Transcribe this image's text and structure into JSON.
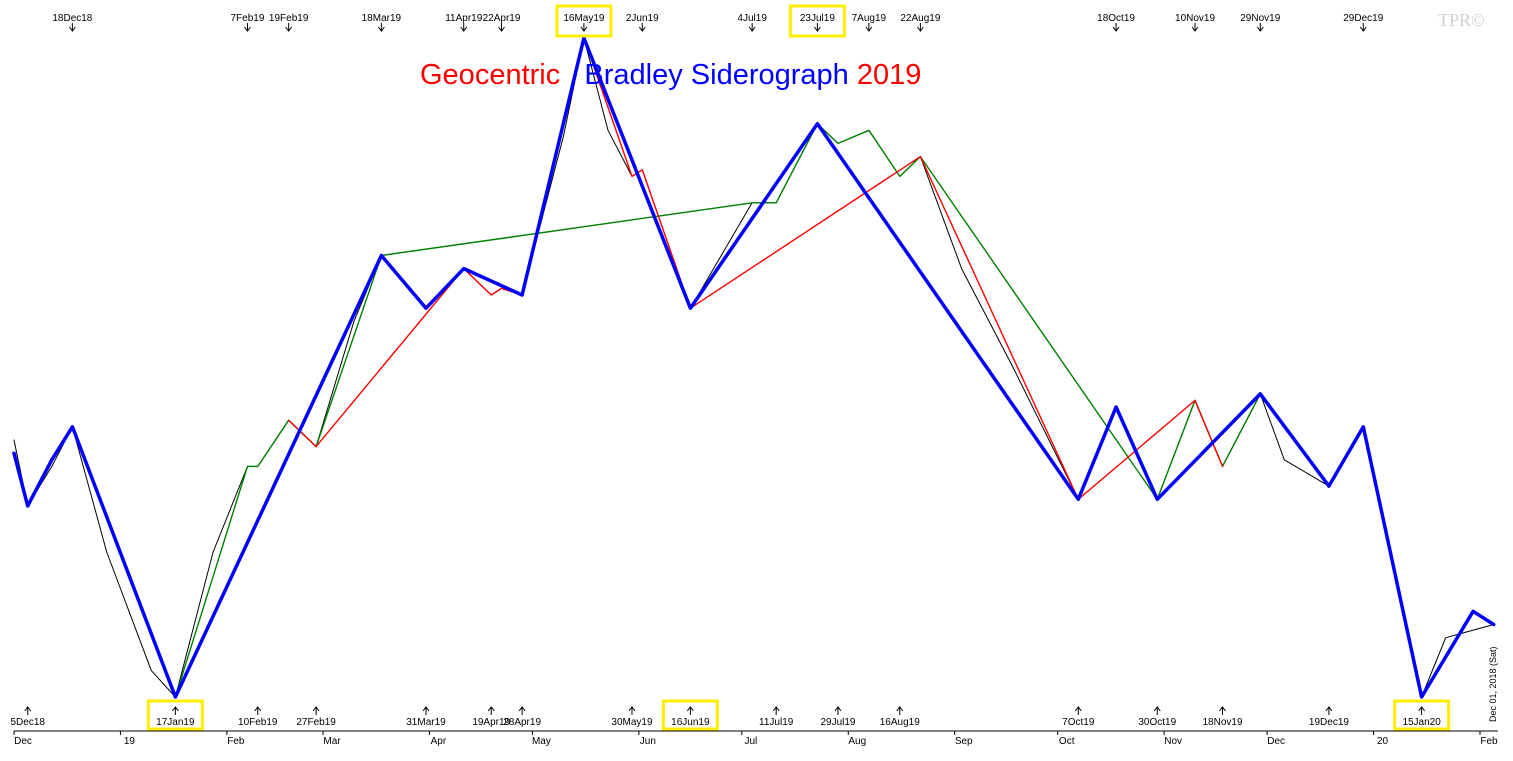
{
  "title": {
    "parts": [
      {
        "text": "Geocentric",
        "color": "#ff0000"
      },
      {
        "text": "Bradley Siderograph",
        "color": "#0000ff"
      },
      {
        "text": "2019",
        "color": "#ff0000"
      }
    ]
  },
  "logo": "TPR©",
  "side_date": "Dec 01, 2018 (Sat)",
  "chart_data": {
    "type": "line",
    "x_start": "2018-12-01",
    "x_end": "2020-02-01",
    "ylim": [
      0,
      100
    ],
    "months": [
      {
        "label": "Dec",
        "date": "2018-12-01"
      },
      {
        "label": "19",
        "date": "2019-01-01"
      },
      {
        "label": "Feb",
        "date": "2019-02-01"
      },
      {
        "label": "Mar",
        "date": "2019-03-01"
      },
      {
        "label": "Apr",
        "date": "2019-04-01"
      },
      {
        "label": "May",
        "date": "2019-05-01"
      },
      {
        "label": "Jun",
        "date": "2019-06-01"
      },
      {
        "label": "Jul",
        "date": "2019-07-01"
      },
      {
        "label": "Aug",
        "date": "2019-08-01"
      },
      {
        "label": "Sep",
        "date": "2019-09-01"
      },
      {
        "label": "Oct",
        "date": "2019-10-01"
      },
      {
        "label": "Nov",
        "date": "2019-11-01"
      },
      {
        "label": "Dec",
        "date": "2019-12-01"
      },
      {
        "label": "20",
        "date": "2020-01-01"
      },
      {
        "label": "Feb",
        "date": "2020-02-01"
      }
    ],
    "top_labels": [
      {
        "label": "18Dec18",
        "date": "2018-12-18",
        "highlight": false
      },
      {
        "label": "7Feb19",
        "date": "2019-02-07",
        "highlight": false
      },
      {
        "label": "19Feb19",
        "date": "2019-02-19",
        "highlight": false
      },
      {
        "label": "18Mar19",
        "date": "2019-03-18",
        "highlight": false
      },
      {
        "label": "11Apr19",
        "date": "2019-04-11",
        "highlight": false
      },
      {
        "label": "22Apr19",
        "date": "2019-04-22",
        "highlight": false
      },
      {
        "label": "16May19",
        "date": "2019-05-16",
        "highlight": true
      },
      {
        "label": "2Jun19",
        "date": "2019-06-02",
        "highlight": false
      },
      {
        "label": "4Jul19",
        "date": "2019-07-04",
        "highlight": false
      },
      {
        "label": "23Jul19",
        "date": "2019-07-23",
        "highlight": true
      },
      {
        "label": "7Aug19",
        "date": "2019-08-07",
        "highlight": false
      },
      {
        "label": "22Aug19",
        "date": "2019-08-22",
        "highlight": false
      },
      {
        "label": "18Oct19",
        "date": "2019-10-18",
        "highlight": false
      },
      {
        "label": "10Nov19",
        "date": "2019-11-10",
        "highlight": false
      },
      {
        "label": "29Nov19",
        "date": "2019-11-29",
        "highlight": false
      },
      {
        "label": "29Dec19",
        "date": "2019-12-29",
        "highlight": false
      }
    ],
    "bottom_labels": [
      {
        "label": "5Dec18",
        "date": "2018-12-05",
        "highlight": false
      },
      {
        "label": "17Jan19",
        "date": "2019-01-17",
        "highlight": true
      },
      {
        "label": "10Feb19",
        "date": "2019-02-10",
        "highlight": false
      },
      {
        "label": "27Feb19",
        "date": "2019-02-27",
        "highlight": false
      },
      {
        "label": "31Mar19",
        "date": "2019-03-31",
        "highlight": false
      },
      {
        "label": "19Apr19",
        "date": "2019-04-19",
        "highlight": false
      },
      {
        "label": "28Apr19",
        "date": "2019-04-28",
        "highlight": false
      },
      {
        "label": "30May19",
        "date": "2019-05-30",
        "highlight": false
      },
      {
        "label": "16Jun19",
        "date": "2019-06-16",
        "highlight": true
      },
      {
        "label": "11Jul19",
        "date": "2019-07-11",
        "highlight": false
      },
      {
        "label": "29Jul19",
        "date": "2019-07-29",
        "highlight": false
      },
      {
        "label": "16Aug19",
        "date": "2019-08-16",
        "highlight": false
      },
      {
        "label": "7Oct19",
        "date": "2019-10-07",
        "highlight": false
      },
      {
        "label": "30Oct19",
        "date": "2019-10-30",
        "highlight": false
      },
      {
        "label": "18Nov19",
        "date": "2019-11-18",
        "highlight": false
      },
      {
        "label": "19Dec19",
        "date": "2019-12-19",
        "highlight": false
      },
      {
        "label": "15Jan20",
        "date": "2020-01-15",
        "highlight": true
      }
    ],
    "series": [
      {
        "color": "#0000ff",
        "points": [
          [
            "2018-12-01",
            37
          ],
          [
            "2018-12-05",
            29
          ],
          [
            "2018-12-12",
            36
          ],
          [
            "2018-12-18",
            41
          ],
          [
            "2019-01-17",
            0
          ],
          [
            "2019-03-18",
            67
          ],
          [
            "2019-03-31",
            59
          ],
          [
            "2019-04-11",
            65
          ],
          [
            "2019-04-28",
            61
          ],
          [
            "2019-05-16",
            100
          ],
          [
            "2019-06-16",
            59
          ],
          [
            "2019-07-23",
            87
          ],
          [
            "2019-10-07",
            30
          ],
          [
            "2019-10-18",
            44
          ],
          [
            "2019-10-30",
            30
          ],
          [
            "2019-11-29",
            46
          ],
          [
            "2019-12-19",
            32
          ],
          [
            "2019-12-29",
            41
          ],
          [
            "2020-01-15",
            0
          ],
          [
            "2020-01-30",
            13
          ],
          [
            "2020-02-05",
            11
          ]
        ]
      },
      {
        "color": "#000000",
        "points": [
          [
            "2018-12-01",
            39
          ],
          [
            "2018-12-05",
            29
          ],
          [
            "2018-12-12",
            35
          ],
          [
            "2018-12-18",
            41
          ],
          [
            "2018-12-28",
            22
          ],
          [
            "2019-01-10",
            4
          ],
          [
            "2019-01-17",
            0
          ],
          [
            "2019-01-28",
            22
          ],
          [
            "2019-02-07",
            35
          ],
          [
            "2019-02-10",
            35
          ],
          [
            "2019-02-19",
            42
          ],
          [
            "2019-02-27",
            38
          ],
          [
            "2019-03-10",
            57
          ],
          [
            "2019-03-18",
            67
          ],
          [
            "2019-03-31",
            59
          ],
          [
            "2019-04-11",
            65
          ],
          [
            "2019-04-19",
            61
          ],
          [
            "2019-04-22",
            62
          ],
          [
            "2019-04-28",
            61
          ],
          [
            "2019-05-10",
            85
          ],
          [
            "2019-05-16",
            100
          ],
          [
            "2019-05-23",
            86
          ],
          [
            "2019-05-30",
            79
          ],
          [
            "2019-06-02",
            80
          ],
          [
            "2019-06-16",
            59
          ],
          [
            "2019-07-04",
            75
          ],
          [
            "2019-07-11",
            75
          ],
          [
            "2019-07-23",
            87
          ],
          [
            "2019-07-29",
            84
          ],
          [
            "2019-08-07",
            86
          ],
          [
            "2019-08-16",
            79
          ],
          [
            "2019-08-22",
            82
          ],
          [
            "2019-09-03",
            65
          ],
          [
            "2019-09-18",
            50
          ],
          [
            "2019-10-07",
            30
          ],
          [
            "2019-10-18",
            44
          ],
          [
            "2019-10-30",
            30
          ],
          [
            "2019-11-10",
            45
          ],
          [
            "2019-11-18",
            35
          ],
          [
            "2019-11-29",
            46
          ],
          [
            "2019-12-06",
            36
          ],
          [
            "2019-12-19",
            32
          ],
          [
            "2019-12-29",
            41
          ],
          [
            "2020-01-15",
            0
          ],
          [
            "2020-01-22",
            9
          ],
          [
            "2020-02-05",
            11
          ]
        ]
      },
      {
        "color": "#008000",
        "points": [
          [
            "2019-01-17",
            0
          ],
          [
            "2019-02-07",
            35
          ],
          [
            "2019-02-10",
            35
          ],
          [
            "2019-02-19",
            42
          ],
          [
            "2019-02-27",
            38
          ],
          [
            "2019-03-18",
            67
          ],
          [
            "2019-07-04",
            75
          ],
          [
            "2019-07-11",
            75
          ],
          [
            "2019-07-23",
            87
          ],
          [
            "2019-07-29",
            84
          ],
          [
            "2019-08-07",
            86
          ],
          [
            "2019-08-16",
            79
          ],
          [
            "2019-08-22",
            82
          ],
          [
            "2019-10-30",
            30
          ],
          [
            "2019-11-10",
            45
          ],
          [
            "2019-11-18",
            35
          ],
          [
            "2019-11-29",
            46
          ]
        ]
      },
      {
        "color": "#ff0000",
        "points": [
          [
            "2019-02-19",
            42
          ],
          [
            "2019-02-27",
            38
          ],
          [
            "2019-04-11",
            65
          ],
          [
            "2019-04-19",
            61
          ],
          [
            "2019-04-22",
            62
          ],
          [
            "2019-04-28",
            61
          ],
          [
            "2019-05-16",
            100
          ],
          [
            "2019-05-30",
            79
          ],
          [
            "2019-06-02",
            80
          ],
          [
            "2019-06-16",
            59
          ],
          [
            "2019-08-22",
            82
          ],
          [
            "2019-10-07",
            30
          ],
          [
            "2019-11-10",
            45
          ],
          [
            "2019-11-18",
            35
          ]
        ]
      }
    ]
  }
}
